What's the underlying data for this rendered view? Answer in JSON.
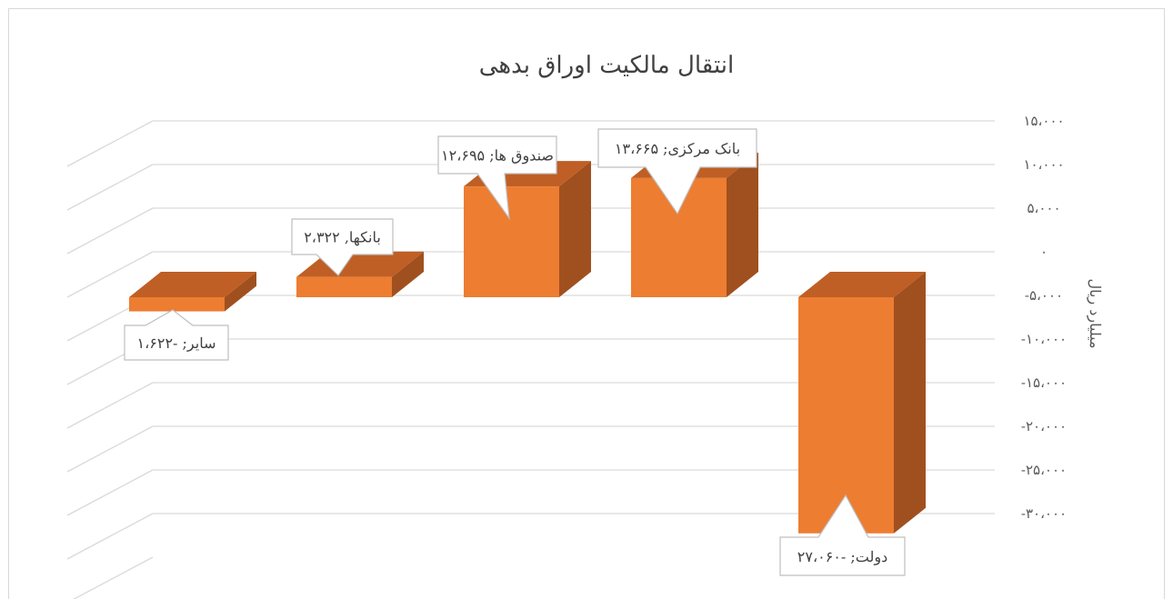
{
  "chart_data": {
    "type": "bar",
    "title": "انتقال مالکیت اوراق بدهی",
    "ylabel": "میلیارد ریال",
    "ylim": [
      -30000,
      15000
    ],
    "y_ticks": [
      15000,
      10000,
      5000,
      0,
      -5000,
      -10000,
      -15000,
      -20000,
      -25000,
      -30000
    ],
    "y_tick_labels": [
      "۱۵،۰۰۰",
      "۱۰،۰۰۰",
      "۵،۰۰۰",
      "۰",
      "-۵،۰۰۰",
      "-۱۰،۰۰۰",
      "-۱۵،۰۰۰",
      "-۲۰،۰۰۰",
      "-۲۵،۰۰۰",
      "-۳۰،۰۰۰"
    ],
    "categories": [
      "سایر",
      "بانکها",
      "صندوق ها",
      "بانک مرکزی",
      "دولت"
    ],
    "values": [
      -1622,
      2322,
      12695,
      13665,
      -27060
    ],
    "data_labels": [
      "سایر; -۱،۶۲۲",
      "بانکها, ۲،۳۲۲",
      "صندوق ها; ۱۲،۶۹۵",
      "بانک مرکزی; ۱۳،۶۶۵",
      "دولت; -۲۷،۰۶۰"
    ],
    "grid": true,
    "legend": "none",
    "colors": {
      "bar_front": "#ed7d31",
      "bar_side": "#a0501f",
      "bar_top": "#bf5f25",
      "grid": "#d9d9d9"
    }
  }
}
